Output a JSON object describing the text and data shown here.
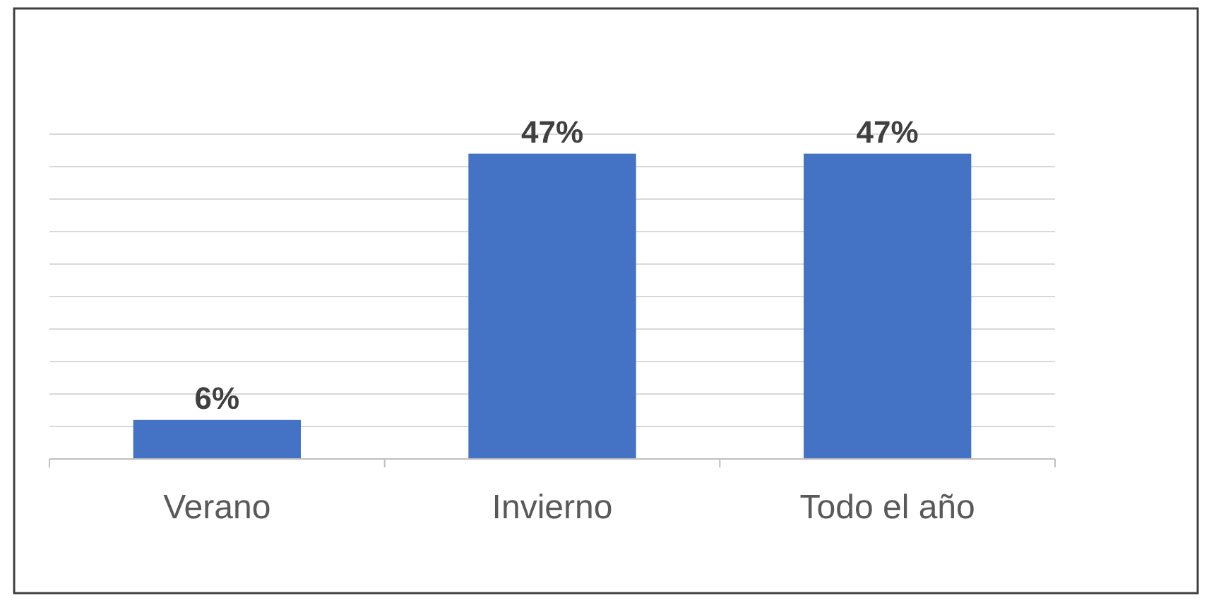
{
  "chart_data": {
    "type": "bar",
    "categories": [
      "Verano",
      "Invierno",
      "Todo el año"
    ],
    "values": [
      6,
      47,
      47
    ],
    "value_labels": [
      "6%",
      "47%",
      "47%"
    ],
    "color": "#4472c4",
    "ylim": [
      0,
      50
    ],
    "yticks": [
      {
        "value": 0,
        "label": null
      },
      {
        "value": 5,
        "label": null
      },
      {
        "value": 10,
        "label": null
      },
      {
        "value": 15,
        "label": null
      },
      {
        "value": 20,
        "label": null
      },
      {
        "value": 25,
        "label": null
      },
      {
        "value": 30,
        "label": null
      },
      {
        "value": 35,
        "label": null
      },
      {
        "value": 40,
        "label": null
      },
      {
        "value": 45,
        "label": null
      },
      {
        "value": 50,
        "label": null
      }
    ],
    "tick_labels": "x",
    "grid": "y"
  }
}
